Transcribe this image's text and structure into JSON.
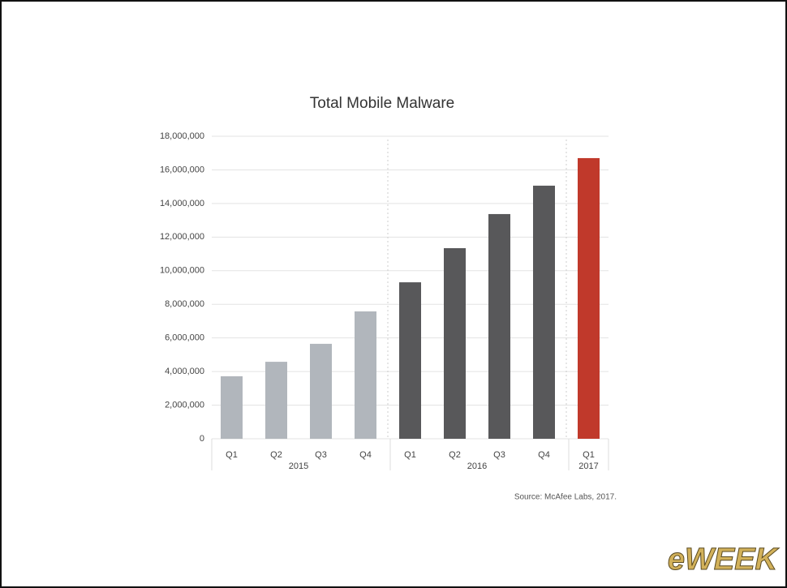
{
  "chart_data": {
    "type": "bar",
    "title": "Total Mobile Malware",
    "categories": [
      "Q1",
      "Q2",
      "Q3",
      "Q4",
      "Q1",
      "Q2",
      "Q3",
      "Q4",
      "Q1"
    ],
    "groups": [
      "2015",
      "2015",
      "2015",
      "2015",
      "2016",
      "2016",
      "2016",
      "2016",
      "2017"
    ],
    "values": [
      3720000,
      4580000,
      5650000,
      7580000,
      9310000,
      11340000,
      13370000,
      15060000,
      16700000
    ],
    "colors": [
      "#b1b6bc",
      "#b1b6bc",
      "#b1b6bc",
      "#b1b6bc",
      "#58585a",
      "#58585a",
      "#58585a",
      "#58585a",
      "#c0392b"
    ],
    "ylim": [
      0,
      18000000
    ],
    "yticks": [
      0,
      {
        "value": 2000000,
        "label": "2,000,000"
      },
      {
        "value": 4000000,
        "label": "4,000,000"
      },
      {
        "value": 6000000,
        "label": "6,000,000"
      },
      {
        "value": 8000000,
        "label": "8,000,000"
      },
      {
        "value": 10000000,
        "label": "10,000,000"
      },
      {
        "value": 12000000,
        "label": "12,000,000"
      },
      {
        "value": 14000000,
        "label": "14,000,000"
      },
      {
        "value": 16000000,
        "label": "16,000,000"
      },
      {
        "value": 18000000,
        "label": "18,000,000"
      }
    ],
    "grid": true,
    "source": "Source: McAfee Labs, 2017.",
    "watermark": "eWEEK"
  }
}
